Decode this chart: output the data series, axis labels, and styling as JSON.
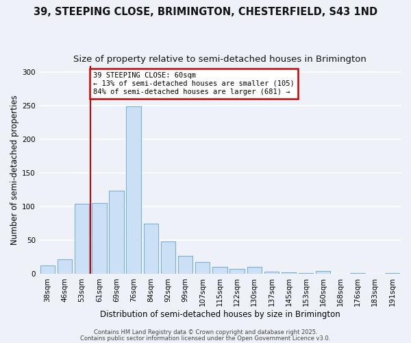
{
  "title_line1": "39, STEEPING CLOSE, BRIMINGTON, CHESTERFIELD, S43 1ND",
  "title_line2": "Size of property relative to semi-detached houses in Brimington",
  "xlabel": "Distribution of semi-detached houses by size in Brimington",
  "ylabel": "Number of semi-detached properties",
  "bar_labels": [
    "38sqm",
    "46sqm",
    "53sqm",
    "61sqm",
    "69sqm",
    "76sqm",
    "84sqm",
    "92sqm",
    "99sqm",
    "107sqm",
    "115sqm",
    "122sqm",
    "130sqm",
    "137sqm",
    "145sqm",
    "153sqm",
    "160sqm",
    "168sqm",
    "176sqm",
    "183sqm",
    "191sqm"
  ],
  "bar_values": [
    13,
    22,
    105,
    106,
    124,
    249,
    75,
    48,
    27,
    18,
    11,
    8,
    11,
    4,
    3,
    1,
    5,
    0,
    1,
    0,
    1
  ],
  "bar_color": "#cce0f5",
  "bar_edge_color": "#7ab0d8",
  "vline_color": "#cc0000",
  "ylim": [
    0,
    310
  ],
  "yticks": [
    0,
    50,
    100,
    150,
    200,
    250,
    300
  ],
  "annotation_title": "39 STEEPING CLOSE: 60sqm",
  "annotation_line1": "← 13% of semi-detached houses are smaller (105)",
  "annotation_line2": "84% of semi-detached houses are larger (681) →",
  "annotation_box_color": "#ffffff",
  "annotation_box_edge": "#cc0000",
  "footer1": "Contains HM Land Registry data © Crown copyright and database right 2025.",
  "footer2": "Contains public sector information licensed under the Open Government Licence v3.0.",
  "bg_color": "#eef2f8",
  "grid_color": "#ffffff",
  "title_fontsize": 10.5,
  "subtitle_fontsize": 9.5,
  "axis_label_fontsize": 8.5,
  "tick_fontsize": 7.5,
  "footer_fontsize": 6.0,
  "annot_fontsize": 7.5
}
